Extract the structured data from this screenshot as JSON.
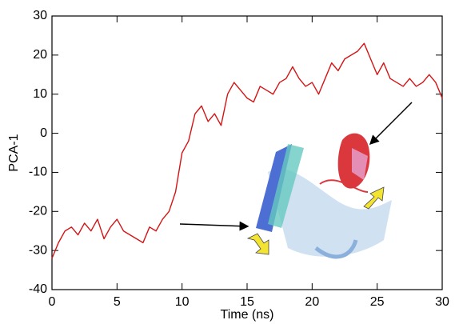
{
  "chart_data": {
    "type": "line",
    "xlabel": "Time (ns)",
    "ylabel": "PCA-1",
    "x": [
      0,
      0.5,
      1,
      1.5,
      2,
      2.5,
      3,
      3.5,
      4,
      4.5,
      5,
      5.5,
      6,
      6.5,
      7,
      7.5,
      8,
      8.5,
      9,
      9.5,
      10,
      10.5,
      11,
      11.5,
      12,
      12.5,
      13,
      13.5,
      14,
      14.5,
      15,
      15.5,
      16,
      16.5,
      17,
      17.5,
      18,
      18.5,
      19,
      19.5,
      20,
      20.5,
      21,
      21.5,
      22,
      22.5,
      23,
      23.5,
      24,
      24.5,
      25,
      25.5,
      26,
      26.5,
      27,
      27.5,
      28,
      28.5,
      29,
      29.5,
      30
    ],
    "series": [
      {
        "color": "#d41414",
        "values": [
          -32,
          -28,
          -25,
          -24,
          -26,
          -23,
          -25,
          -22,
          -27,
          -24,
          -22,
          -25,
          -26,
          -27,
          -28,
          -24,
          -25,
          -22,
          -20,
          -15,
          -5,
          -2,
          5,
          7,
          3,
          5,
          2,
          10,
          13,
          11,
          9,
          8,
          12,
          11,
          10,
          13,
          14,
          17,
          14,
          12,
          13,
          10,
          14,
          18,
          16,
          19,
          20,
          21,
          23,
          19,
          15,
          18,
          14,
          13,
          12,
          14,
          12,
          13,
          15,
          13,
          9
        ]
      }
    ],
    "xlim": [
      0,
      30
    ],
    "xticks": [
      0,
      5,
      10,
      15,
      20,
      25,
      30
    ],
    "ylim": [
      -40,
      30
    ],
    "yticks": [
      -40,
      -30,
      -20,
      -10,
      0,
      10,
      20,
      30
    ]
  }
}
